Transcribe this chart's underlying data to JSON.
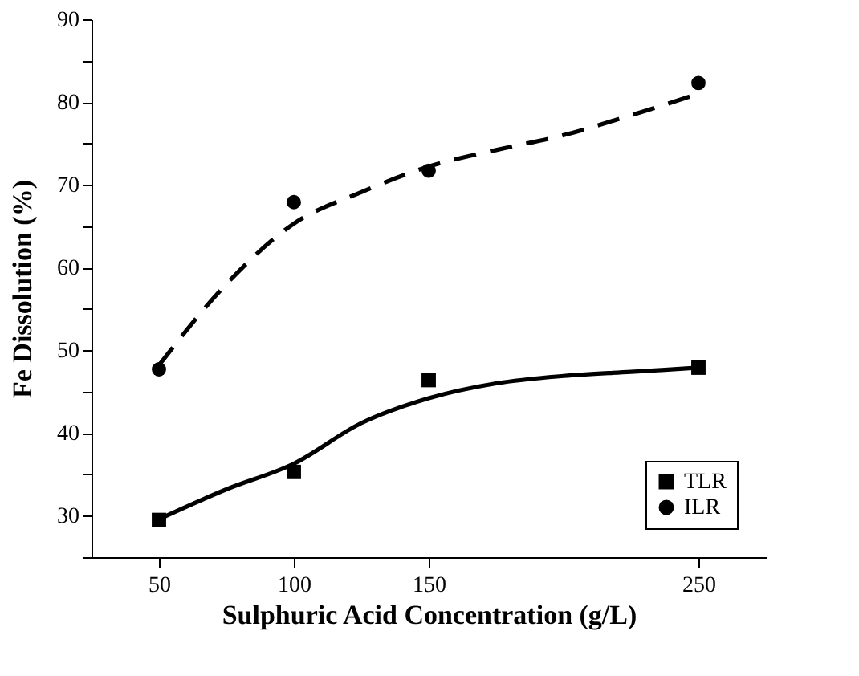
{
  "chart_data": {
    "type": "scatter",
    "xlabel": "Sulphuric Acid Concentration (g/L)",
    "ylabel": "Fe Dissolution (%)",
    "xlim": [
      25,
      275
    ],
    "xticks": [
      50,
      100,
      150,
      250
    ],
    "ylim": [
      25,
      90
    ],
    "yticks": [
      {
        "value": 25,
        "label": null
      },
      30,
      {
        "value": 35,
        "label": null
      },
      40,
      {
        "value": 45,
        "label": null
      },
      50,
      {
        "value": 55,
        "label": null
      },
      60,
      {
        "value": 65,
        "label": null
      },
      70,
      {
        "value": 75,
        "label": null
      },
      80,
      {
        "value": 85,
        "label": null
      },
      90
    ],
    "grid": false,
    "legend": "bottom right",
    "series": [
      {
        "name": "TLR",
        "type": "scatter",
        "marker": "square",
        "color": "#000000",
        "x": [
          50,
          100,
          150,
          250
        ],
        "values": [
          29.5,
          35.3,
          46.4,
          47.9
        ]
      },
      {
        "name": "ILR",
        "type": "scatter",
        "marker": "circle",
        "color": "#000000",
        "x": [
          50,
          100,
          150,
          250
        ],
        "values": [
          47.7,
          67.9,
          71.7,
          82.3
        ]
      },
      {
        "type": "line",
        "line_style": "solid",
        "color": "#000000",
        "x": [
          50,
          75,
          100,
          125,
          150,
          175,
          200,
          225,
          250
        ],
        "values": [
          29.6,
          33.2,
          36.3,
          41.2,
          44.2,
          46.0,
          46.9,
          47.4,
          47.9
        ]
      },
      {
        "type": "line",
        "line_style": "dashed",
        "color": "#000000",
        "x": [
          50,
          75,
          100,
          125,
          150,
          175,
          200,
          225,
          250
        ],
        "values": [
          48.2,
          58.0,
          65.3,
          69.1,
          72.2,
          74.2,
          76.0,
          78.4,
          81.0
        ]
      }
    ]
  }
}
